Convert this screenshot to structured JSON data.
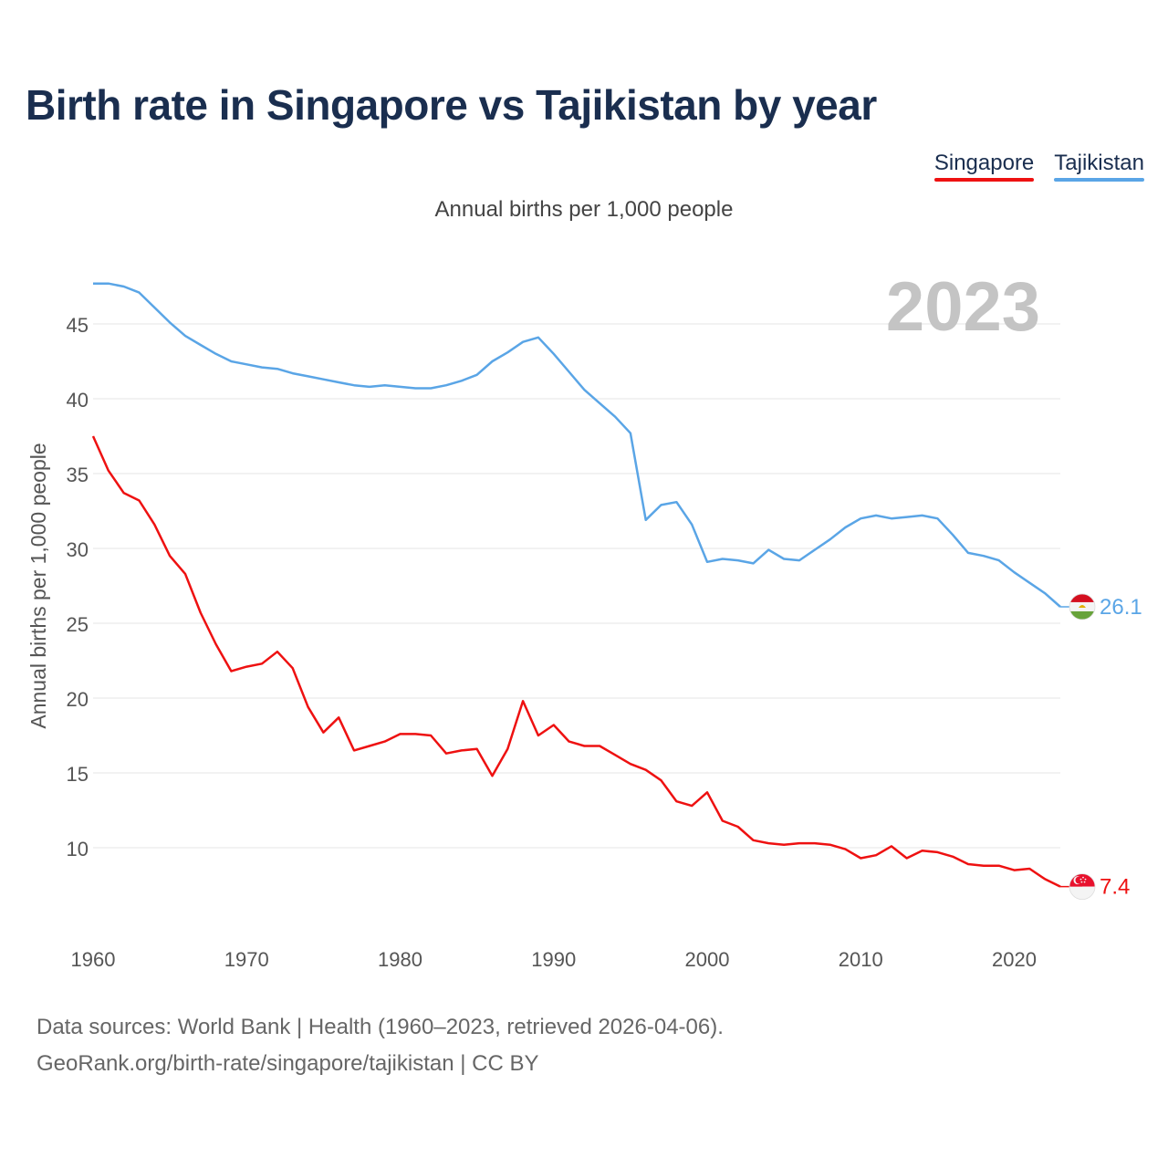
{
  "title": "Birth rate in Singapore vs Tajikistan by year",
  "subtitle": "Annual births per 1,000 people",
  "year_label": "2023",
  "legend": [
    {
      "name": "Singapore",
      "color": "#ee1111"
    },
    {
      "name": "Tajikistan",
      "color": "#5aa5e6"
    }
  ],
  "source": {
    "line1": "Data sources: World Bank | Health (1960–2023, retrieved 2026-04-06).",
    "line2": "GeoRank.org/birth-rate/singapore/tajikistan | CC BY"
  },
  "chart_data": {
    "type": "line",
    "title": "Birth rate in Singapore vs Tajikistan by year",
    "xlabel": "",
    "ylabel": "Annual births per 1,000 people",
    "xlim": [
      1960,
      2024
    ],
    "ylim": [
      5,
      48
    ],
    "x_ticks": [
      1960,
      1970,
      1980,
      1990,
      2000,
      2010,
      2020
    ],
    "y_ticks": [
      10,
      15,
      20,
      25,
      30,
      35,
      40,
      45
    ],
    "grid": true,
    "x": [
      1960,
      1961,
      1962,
      1963,
      1964,
      1965,
      1966,
      1967,
      1968,
      1969,
      1970,
      1971,
      1972,
      1973,
      1974,
      1975,
      1976,
      1977,
      1978,
      1979,
      1980,
      1981,
      1982,
      1983,
      1984,
      1985,
      1986,
      1987,
      1988,
      1989,
      1990,
      1991,
      1992,
      1993,
      1994,
      1995,
      1996,
      1997,
      1998,
      1999,
      2000,
      2001,
      2002,
      2003,
      2004,
      2005,
      2006,
      2007,
      2008,
      2009,
      2010,
      2011,
      2012,
      2013,
      2014,
      2015,
      2016,
      2017,
      2018,
      2019,
      2020,
      2021,
      2022,
      2023
    ],
    "series": [
      {
        "name": "Singapore",
        "color": "#ee1111",
        "end_label": "7.4",
        "values": [
          37.5,
          35.2,
          33.7,
          33.2,
          31.6,
          29.5,
          28.3,
          25.7,
          23.6,
          21.8,
          22.1,
          22.3,
          23.1,
          22.0,
          19.4,
          17.7,
          18.7,
          16.5,
          16.8,
          17.1,
          17.6,
          17.6,
          17.5,
          16.3,
          16.5,
          16.6,
          14.8,
          16.6,
          19.8,
          17.5,
          18.2,
          17.1,
          16.8,
          16.8,
          16.2,
          15.6,
          15.2,
          14.5,
          13.1,
          12.8,
          13.7,
          11.8,
          11.4,
          10.5,
          10.3,
          10.2,
          10.3,
          10.3,
          10.2,
          9.9,
          9.3,
          9.5,
          10.1,
          9.3,
          9.8,
          9.7,
          9.4,
          8.9,
          8.8,
          8.8,
          8.5,
          8.6,
          7.9,
          7.4
        ]
      },
      {
        "name": "Tajikistan",
        "color": "#5aa5e6",
        "end_label": "26.1",
        "values": [
          47.7,
          47.7,
          47.5,
          47.1,
          46.1,
          45.1,
          44.2,
          43.6,
          43.0,
          42.5,
          42.3,
          42.1,
          42.0,
          41.7,
          41.5,
          41.3,
          41.1,
          40.9,
          40.8,
          40.9,
          40.8,
          40.7,
          40.7,
          40.9,
          41.2,
          41.6,
          42.5,
          43.1,
          43.8,
          44.1,
          43.0,
          41.8,
          40.6,
          39.7,
          38.8,
          37.7,
          31.9,
          32.9,
          33.1,
          31.6,
          29.1,
          29.3,
          29.2,
          29.0,
          29.9,
          29.3,
          29.2,
          29.9,
          30.6,
          31.4,
          32.0,
          32.2,
          32.0,
          32.1,
          32.2,
          32.0,
          30.9,
          29.7,
          29.5,
          29.2,
          28.4,
          27.7,
          27.0,
          26.1
        ]
      }
    ]
  }
}
